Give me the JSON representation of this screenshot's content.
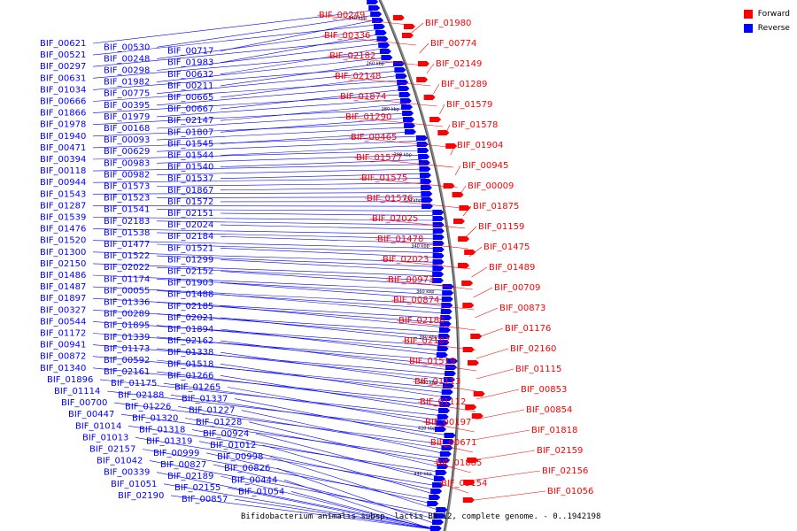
{
  "title": "Bifidobacterium animalis subsp. lactis BB-12, complete genome. - 0..1942198",
  "legend": [
    {
      "label": "Forward",
      "color": "#ff0000"
    },
    {
      "label": "Reverse",
      "color": "#0000ff"
    }
  ],
  "colors": {
    "forward": "#ff0000",
    "reverse": "#0000ff",
    "backbone": "#888888"
  },
  "tick_labels": [
    "240 kbp",
    "260 kbp",
    "280 kbp",
    "300 kbp",
    "320 kbp",
    "340 kbp",
    "360 kbp",
    "380 kbp",
    "400 kbp",
    "420 kbp",
    "440 kbp"
  ],
  "forward_labels": [
    "BIF_00249",
    "BIF_01980",
    "BIF_00336",
    "BIF_00774",
    "BIF_02182",
    "BIF_02149",
    "BIF_02148",
    "BIF_01289",
    "BIF_01874",
    "BIF_01579",
    "BIF_01290",
    "BIF_01578",
    "BIF_00465",
    "BIF_01904",
    "BIF_01577",
    "BIF_00945",
    "BIF_01575",
    "BIF_00009",
    "BIF_01576",
    "BIF_01875",
    "BIF_02025",
    "BIF_01159",
    "BIF_01478",
    "BIF_01475",
    "BIF_02023",
    "BIF_01489",
    "BIF_00973",
    "BIF_00709",
    "BIF_00874",
    "BIF_00873",
    "BIF_02186",
    "BIF_01176",
    "BIF_02187",
    "BIF_02160",
    "BIF_01519",
    "BIF_01115",
    "BIF_01113",
    "BIF_00853",
    "BIF_01112",
    "BIF_00854",
    "BIF_00197",
    "BIF_01818",
    "BIF_00671",
    "BIF_02159",
    "BIF_01885",
    "BIF_02156",
    "BIF_02154",
    "BIF_01056"
  ],
  "reverse_labels": [
    "BIF_00621",
    "BIF_00530",
    "BIF_00717",
    "BIF_00521",
    "BIF_00248",
    "BIF_01983",
    "BIF_00297",
    "BIF_00298",
    "BIF_00632",
    "BIF_00631",
    "BIF_01982",
    "BIF_00211",
    "BIF_01034",
    "BIF_00775",
    "BIF_00665",
    "BIF_00666",
    "BIF_00395",
    "BIF_00667",
    "BIF_01866",
    "BIF_01979",
    "BIF_02147",
    "BIF_01978",
    "BIF_00168",
    "BIF_01807",
    "BIF_01940",
    "BIF_00093",
    "BIF_01545",
    "BIF_00471",
    "BIF_00629",
    "BIF_01544",
    "BIF_00394",
    "BIF_00983",
    "BIF_01540",
    "BIF_00118",
    "BIF_00982",
    "BIF_01537",
    "BIF_00944",
    "BIF_01573",
    "BIF_01867",
    "BIF_01543",
    "BIF_01523",
    "BIF_01572",
    "BIF_01287",
    "BIF_01541",
    "BIF_02151",
    "BIF_01539",
    "BIF_02183",
    "BIF_02024",
    "BIF_01476",
    "BIF_01538",
    "BIF_02184",
    "BIF_01520",
    "BIF_01477",
    "BIF_01521",
    "BIF_01300",
    "BIF_01522",
    "BIF_01299",
    "BIF_02150",
    "BIF_02022",
    "BIF_02152",
    "BIF_01486",
    "BIF_01174",
    "BIF_01903",
    "BIF_01487",
    "BIF_00055",
    "BIF_01488",
    "BIF_01897",
    "BIF_01336",
    "BIF_02185",
    "BIF_00327",
    "BIF_00289",
    "BIF_02021",
    "BIF_00544",
    "BIF_01895",
    "BIF_01894",
    "BIF_01172",
    "BIF_01339",
    "BIF_02162",
    "BIF_00941",
    "BIF_01173",
    "BIF_01338",
    "BIF_00872",
    "BIF_00592",
    "BIF_01518",
    "BIF_01340",
    "BIF_02161",
    "BIF_01266",
    "BIF_01896",
    "BIF_01175",
    "BIF_01265",
    "BIF_01114",
    "BIF_02188",
    "BIF_01337",
    "BIF_00700",
    "BIF_01226",
    "BIF_01227",
    "BIF_00447",
    "BIF_01320",
    "BIF_01228",
    "BIF_01014",
    "BIF_01318",
    "BIF_00924",
    "BIF_01013",
    "BIF_01319",
    "BIF_01012",
    "BIF_02157",
    "BIF_00999",
    "BIF_00998",
    "BIF_01042",
    "BIF_00827",
    "BIF_00826",
    "BIF_00339",
    "BIF_02189",
    "BIF_00444",
    "BIF_01051",
    "BIF_02155",
    "BIF_01054",
    "BIF_02190",
    "BIF_00857"
  ]
}
